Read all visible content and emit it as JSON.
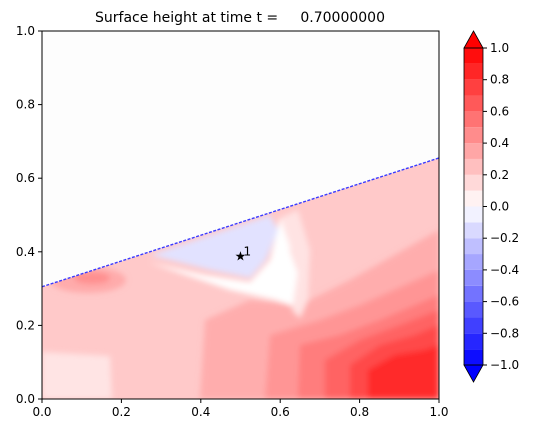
{
  "chart_data": {
    "type": "filled-contour",
    "title": "Surface height at time t =     0.70000000",
    "xlim": [
      0.0,
      1.0
    ],
    "ylim": [
      0.0,
      1.0
    ],
    "x_ticks": [
      "0.0",
      "0.2",
      "0.4",
      "0.6",
      "0.8",
      "1.0"
    ],
    "y_ticks": [
      "0.0",
      "0.2",
      "0.4",
      "0.6",
      "0.8",
      "1.0"
    ],
    "grid": false,
    "colormap": "bwr",
    "colorbar": {
      "range": [
        -1.0,
        1.0
      ],
      "extend": "both",
      "ticks": [
        "1.0",
        "0.8",
        "0.6",
        "0.4",
        "0.2",
        "0.0",
        "−0.2",
        "−0.4",
        "−0.6",
        "−0.8",
        "−1.0"
      ],
      "levels": [
        -1.0,
        -0.9,
        -0.8,
        -0.7,
        -0.6,
        -0.5,
        -0.4,
        -0.3,
        -0.2,
        -0.1,
        0.0,
        0.1,
        0.2,
        0.3,
        0.4,
        0.5,
        0.6,
        0.7,
        0.8,
        0.9,
        1.0
      ]
    },
    "shoreline": {
      "color": "#3b3bff",
      "x": [
        0.0,
        1.0
      ],
      "y": [
        0.305,
        0.655
      ]
    },
    "gauge": {
      "label": "1",
      "x": 0.5,
      "y": 0.39
    }
  }
}
